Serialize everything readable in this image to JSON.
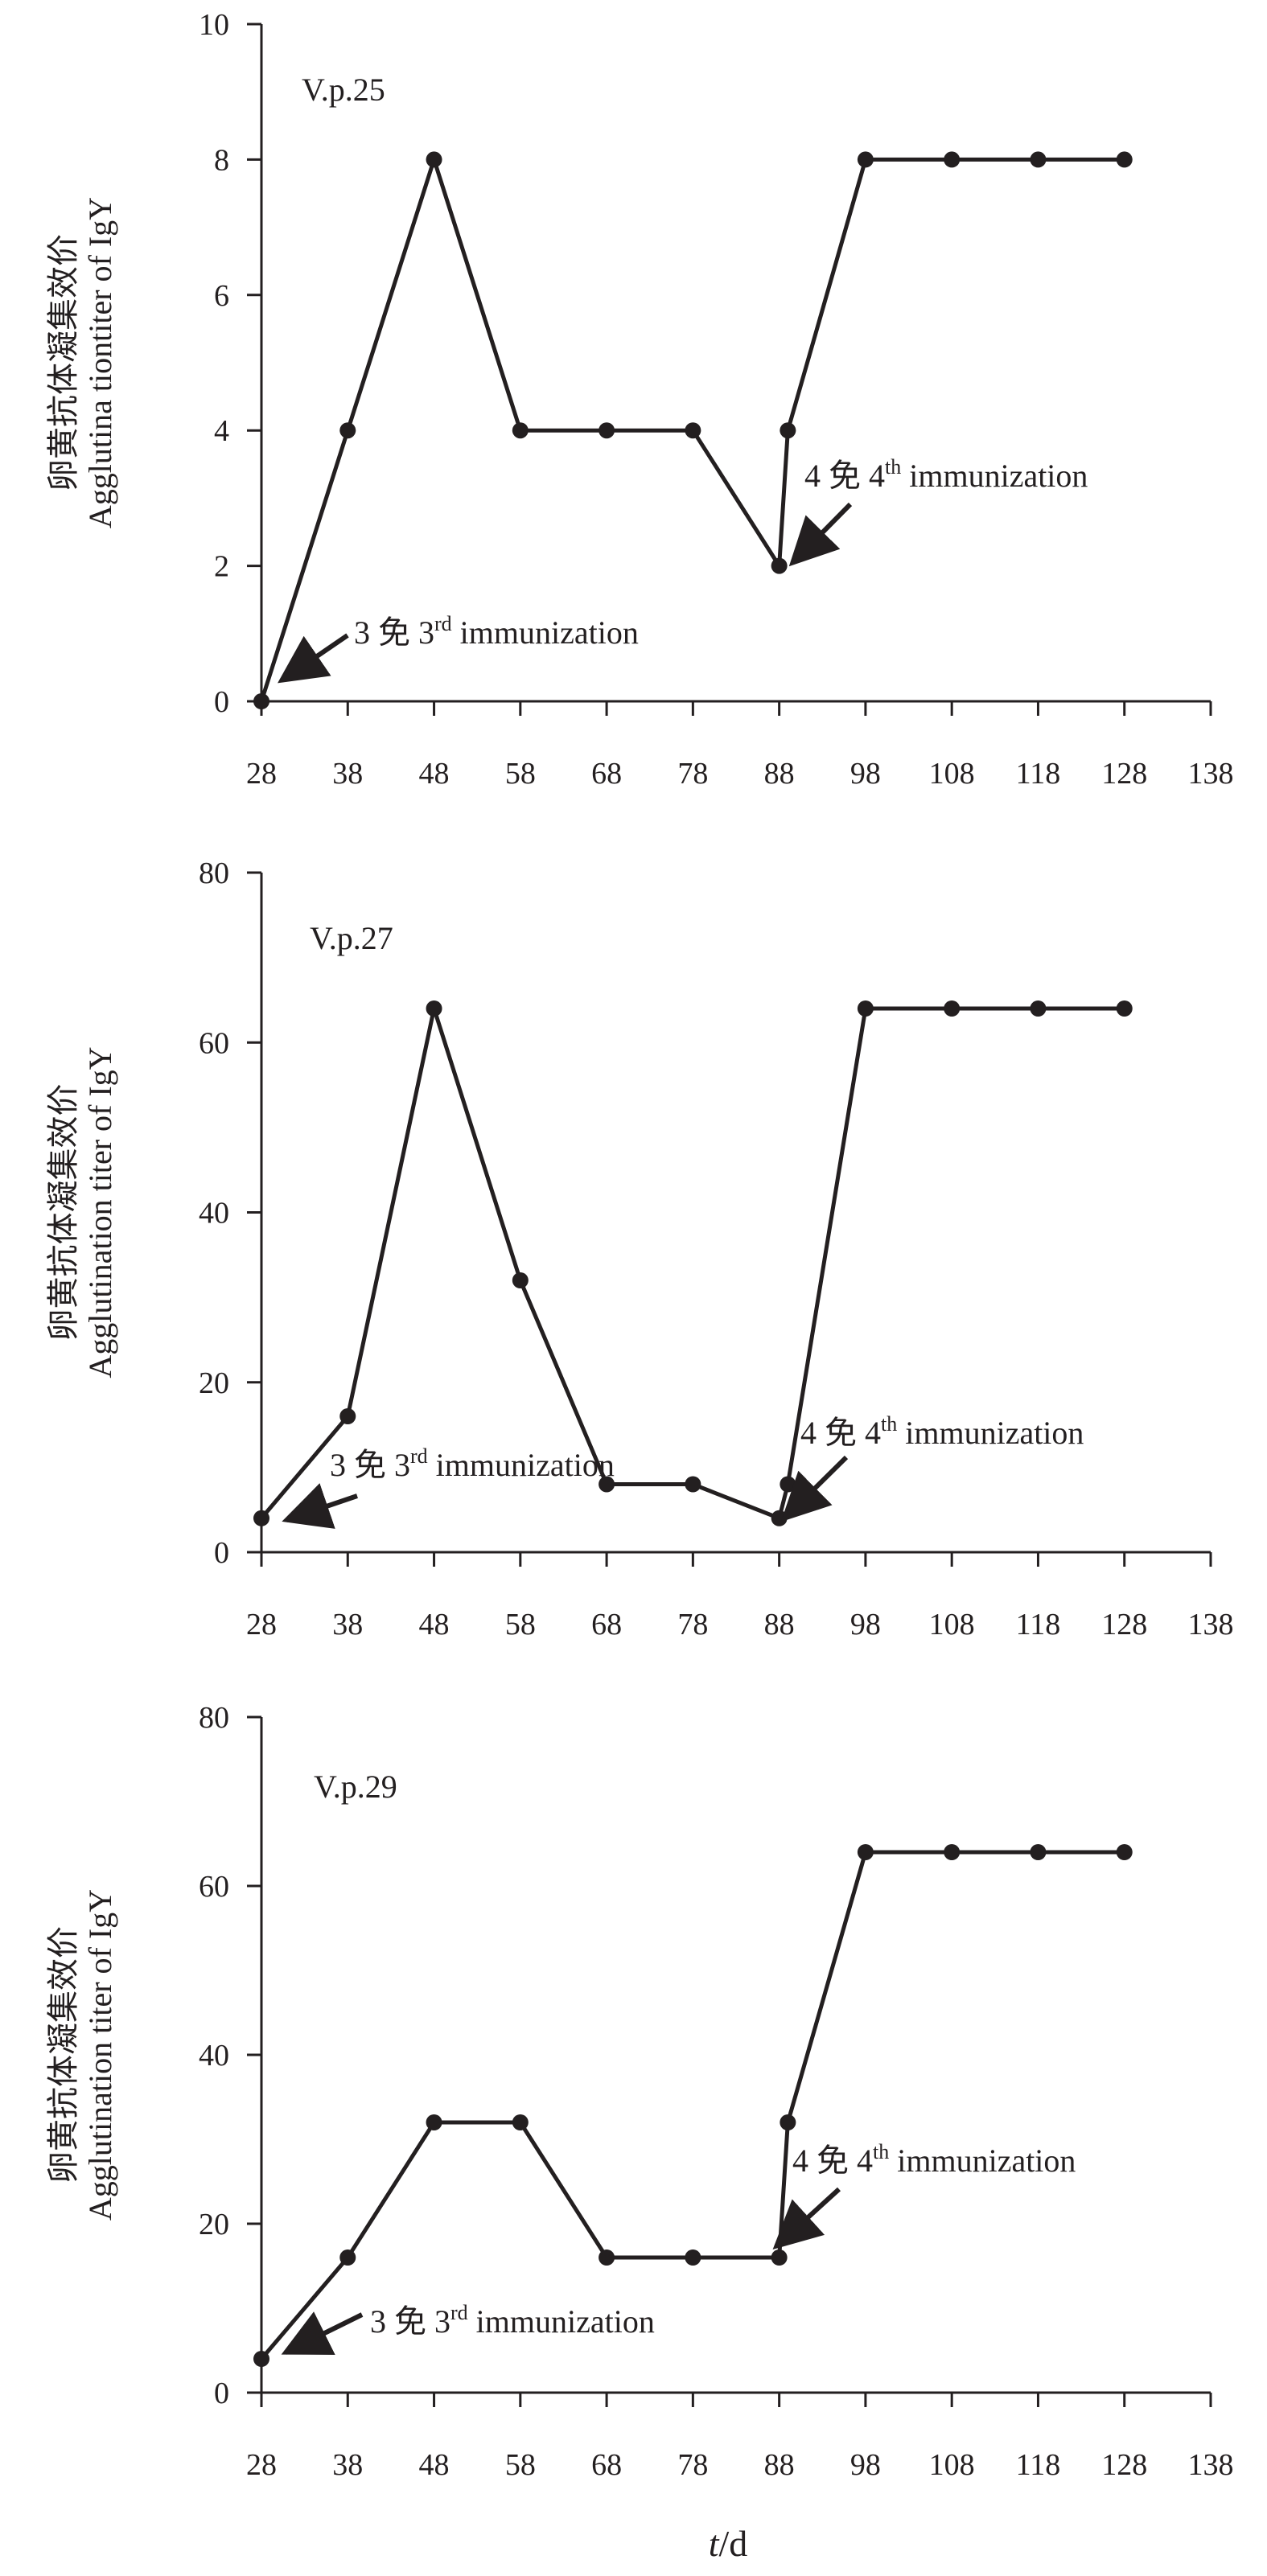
{
  "figure": {
    "xlabel_italic": "t",
    "xlabel_rest": "/d"
  },
  "chart_data": [
    {
      "type": "line",
      "title": "V.p.25",
      "ylabel_cn": "卵黄抗体凝集效价",
      "ylabel_en": "Agglutina tiontiter of IgY",
      "x": [
        28,
        38,
        48,
        58,
        68,
        78,
        88,
        89,
        98,
        108,
        118,
        128
      ],
      "values": [
        0,
        4,
        8,
        4,
        4,
        4,
        2,
        4,
        8,
        8,
        8,
        8
      ],
      "xticks": [
        28,
        38,
        48,
        58,
        68,
        78,
        88,
        98,
        108,
        118,
        128,
        138
      ],
      "yticks": [
        0,
        2,
        4,
        6,
        8,
        10
      ],
      "xlim": [
        28,
        138
      ],
      "ylim": [
        0,
        10
      ],
      "annotations": [
        {
          "prefix": "3 免 3",
          "sup": "rd",
          "suffix": " immunization",
          "x": 28,
          "y": 0
        },
        {
          "prefix": "4 免 4",
          "sup": "th",
          "suffix": " immunization",
          "x": 88,
          "y": 2
        }
      ]
    },
    {
      "type": "line",
      "title": "V.p.27",
      "ylabel_cn": "卵黄抗体凝集效价",
      "ylabel_en": "Agglutination titer of IgY",
      "x": [
        28,
        38,
        48,
        58,
        68,
        78,
        88,
        89,
        98,
        108,
        118,
        128
      ],
      "values": [
        4,
        16,
        64,
        32,
        8,
        8,
        4,
        8,
        64,
        64,
        64,
        64
      ],
      "xticks": [
        28,
        38,
        48,
        58,
        68,
        78,
        88,
        98,
        108,
        118,
        128,
        138
      ],
      "yticks": [
        0,
        20,
        40,
        60,
        80
      ],
      "xlim": [
        28,
        138
      ],
      "ylim": [
        0,
        80
      ],
      "annotations": [
        {
          "prefix": "3 免 3",
          "sup": "rd",
          "suffix": " immunization",
          "x": 28,
          "y": 4
        },
        {
          "prefix": "4 免 4",
          "sup": "th",
          "suffix": " immunization",
          "x": 88,
          "y": 4
        }
      ]
    },
    {
      "type": "line",
      "title": "V.p.29",
      "ylabel_cn": "卵黄抗体凝集效价",
      "ylabel_en": "Agglutination titer of IgY",
      "x": [
        28,
        38,
        48,
        58,
        68,
        78,
        88,
        89,
        98,
        108,
        118,
        128
      ],
      "values": [
        4,
        16,
        32,
        32,
        16,
        16,
        16,
        32,
        64,
        64,
        64,
        64
      ],
      "xticks": [
        28,
        38,
        48,
        58,
        68,
        78,
        88,
        98,
        108,
        118,
        128,
        138
      ],
      "yticks": [
        0,
        20,
        40,
        60,
        80
      ],
      "xlim": [
        28,
        138
      ],
      "ylim": [
        0,
        80
      ],
      "annotations": [
        {
          "prefix": "3 免 3",
          "sup": "rd",
          "suffix": " immunization",
          "x": 28,
          "y": 4
        },
        {
          "prefix": "4 免 4",
          "sup": "th",
          "suffix": " immunization",
          "x": 88,
          "y": 16
        }
      ]
    }
  ]
}
